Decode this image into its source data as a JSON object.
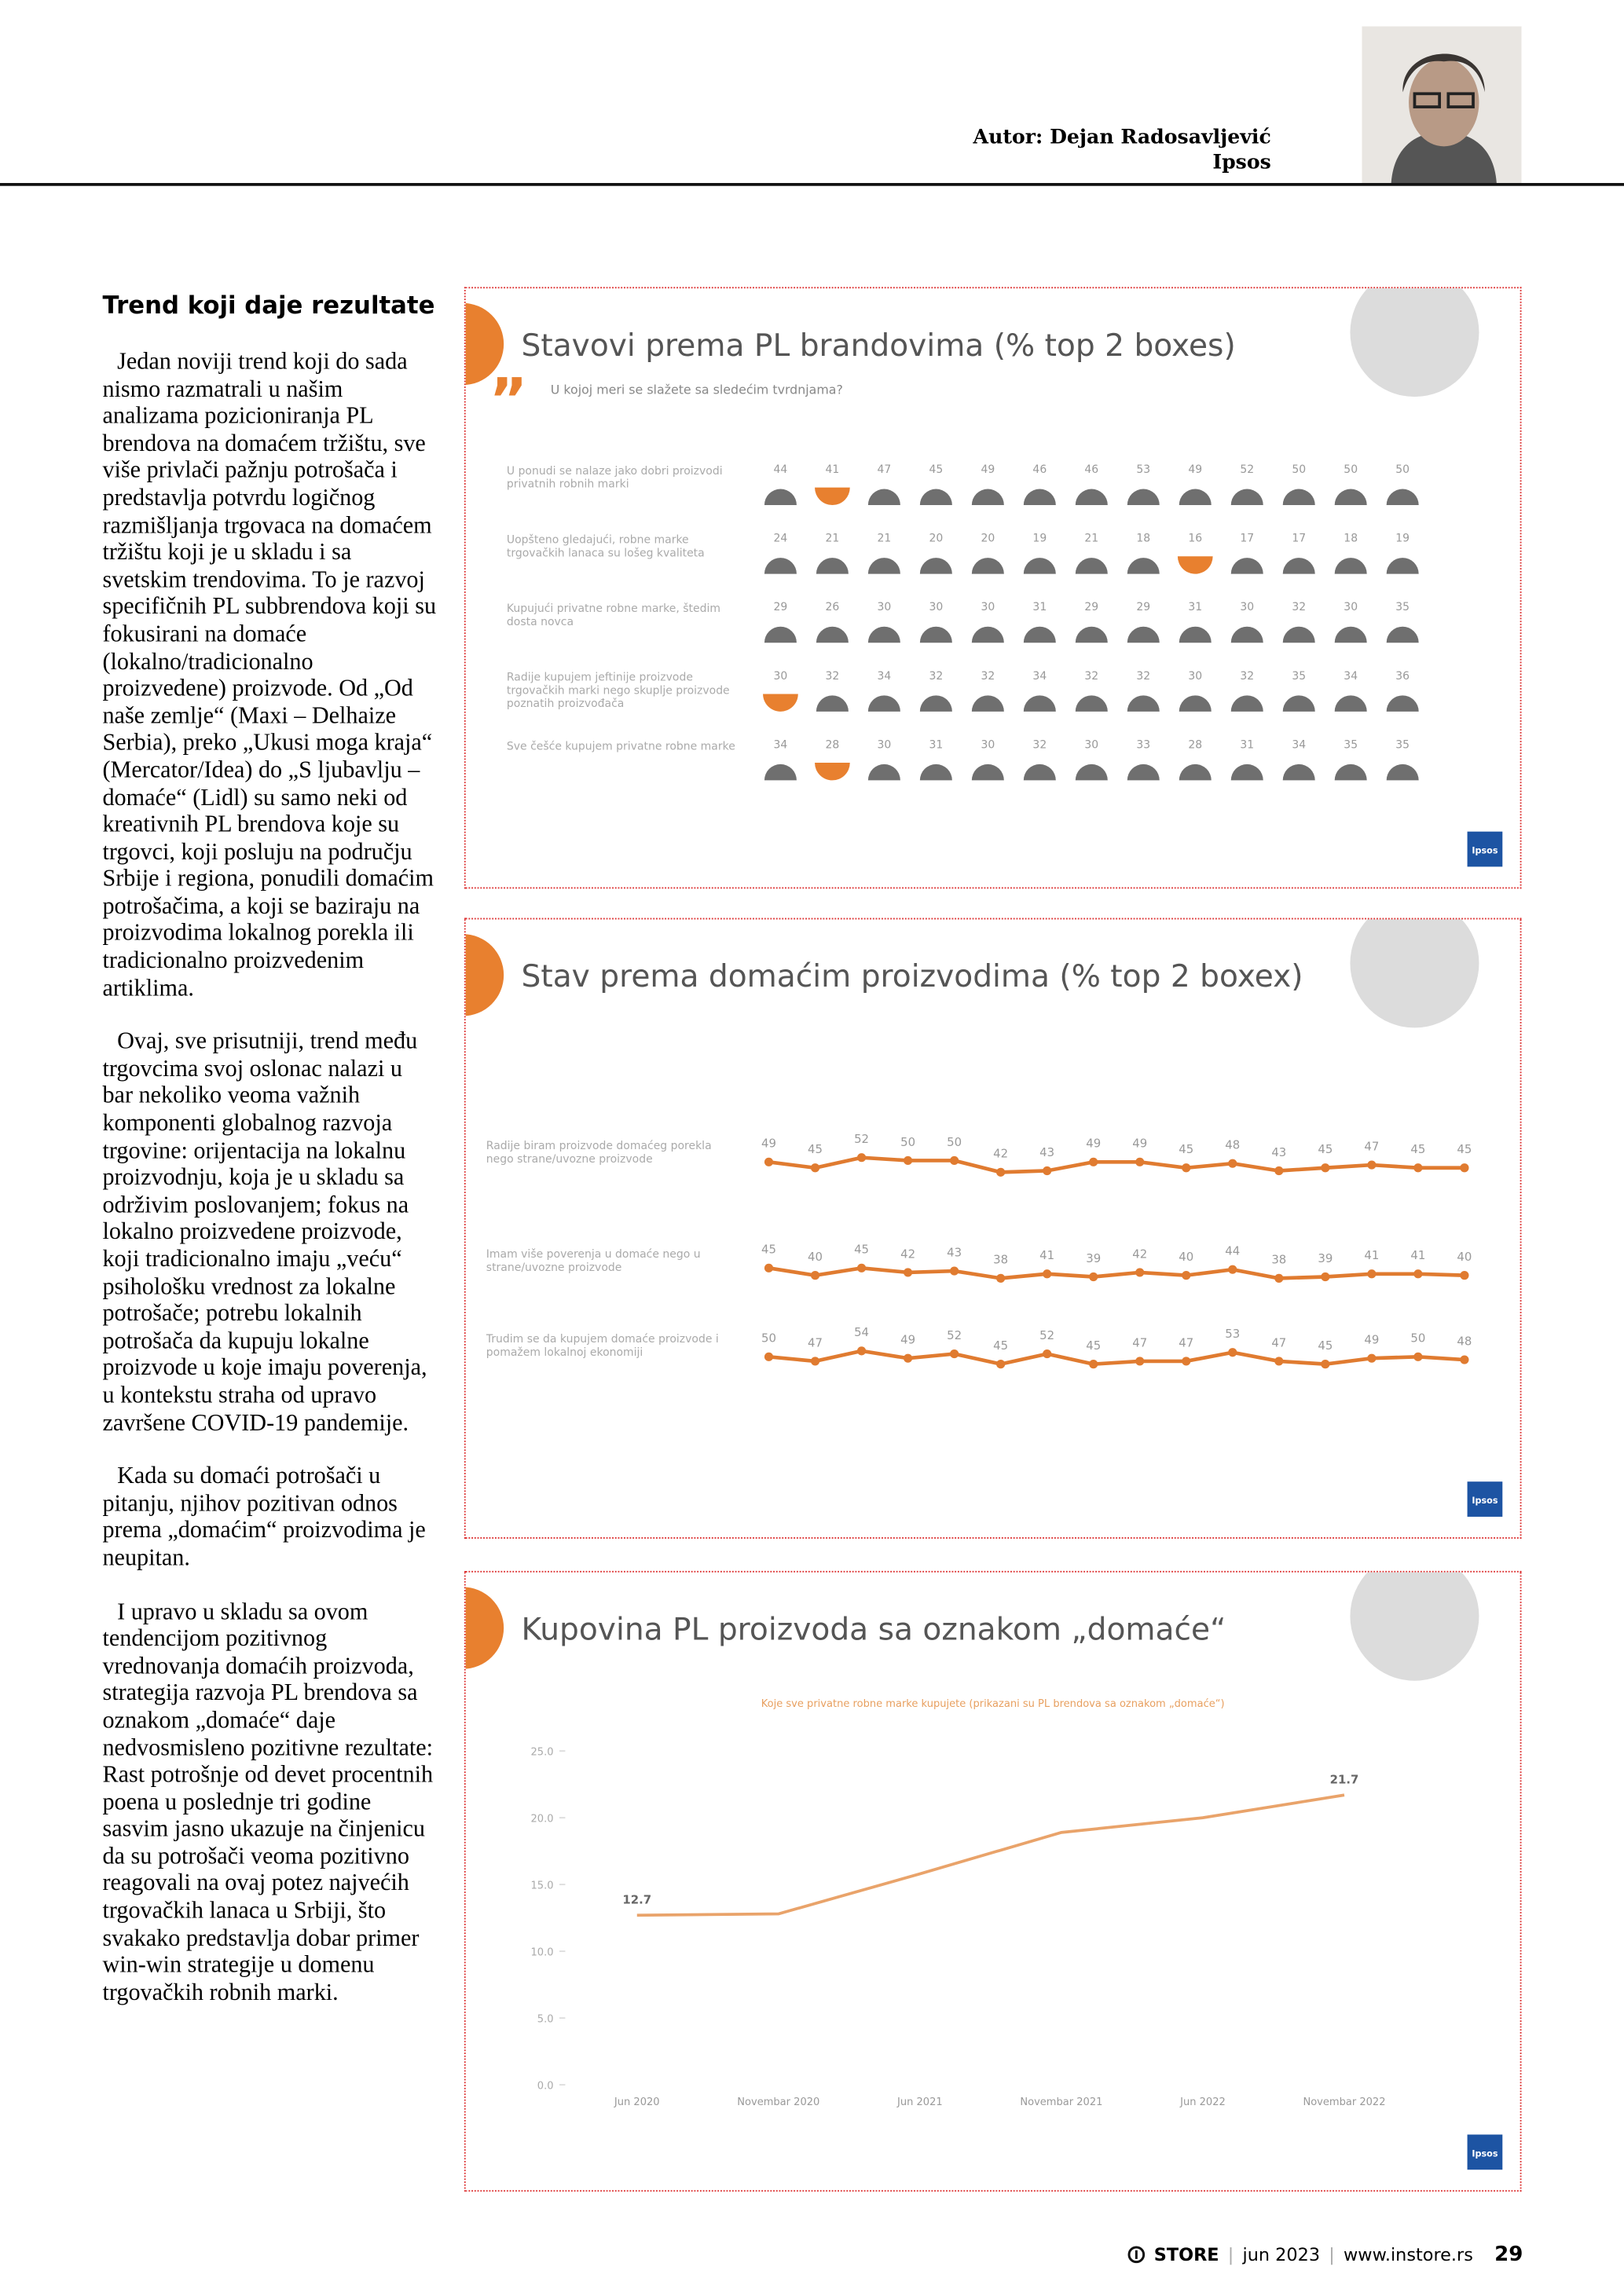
{
  "header": {
    "author": "Autor: Dejan Radosavljević",
    "company": "Ipsos"
  },
  "article": {
    "heading": "Trend koji daje rezultate",
    "paragraphs": [
      "Jedan noviji trend koji do sada nismo razmatrali u našim analizama pozicioniranja PL brendova na domaćem tržištu, sve više privlači pažnju potrošača i predstavlja potvrdu logičnog razmišljanja trgovaca na domaćem tržištu koji je u skladu i sa svetskim trendovima. To je razvoj specifičnih PL subbrendova koji su fokusirani na domaće (lokalno/tradicionalno proizvedene) proizvode. Od „Od naše zemlje“ (Maxi – Delhaize Serbia), preko „Ukusi moga kraja“ (Mercator/Idea) do „S ljubavlju – domaće“ (Lidl) su samo neki od kreativnih PL brendova koje su trgovci, koji posluju na području Srbije i regiona, ponudili domaćim potrošačima, a koji se baziraju na proizvodima lokalnog porekla ili tradicionalno proizvedenim artiklima.",
      "Ovaj, sve prisutniji, trend među trgovcima svoj oslonac nalazi u bar nekoliko veoma važnih komponenti globalnog razvoja trgovine: orijentacija na lokalnu proizvodnju, koja je u skladu sa održivim poslovanjem; fokus na lokalno proizvedene proizvode, koji tradicionalno imaju „veću“ psihološku vrednost za lokalne potrošače; potrebu lokalnih potrošača da kupuju lokalne proizvode u koje imaju poverenja, u kontekstu straha od upravo završene COVID-19 pandemije.",
      "Kada su domaći potrošači u pitanju, njihov pozitivan odnos prema „domaćim“ proizvodima je neupitan.",
      "I upravo u skladu sa ovom tendencijom pozitivnog vrednovanja domaćih proizvoda, strategija razvoja PL brendova sa oznakom „domaće“ daje nedvosmisleno pozitivne rezultate: Rast potrošnje od devet procentnih poena u poslednje tri godine sasvim jasno ukazuje na činjenicu da su potrošači veoma pozitivno reagovali na ovaj potez najvećih trgovačkih lanaca u Srbiji, što svakako predstavlja dobar primer win-win strategije u domenu trgovačkih robnih marki."
    ]
  },
  "chart_data": [
    {
      "type": "icon-grid",
      "title": "Stavovi prema PL brandovima (% top 2 boxes)",
      "subtitle": "U kojoj meri se slažete sa sledećim tvrdnjama?",
      "color": "#6f6f6f",
      "highlight_color": "#e8802f",
      "logo": "Ipsos",
      "series": [
        {
          "name": "U ponudi se nalaze jako dobri proizvodi privatnih robnih marki",
          "values": [
            44,
            41,
            47,
            45,
            49,
            46,
            46,
            53,
            49,
            52,
            50,
            50,
            50
          ],
          "highlight": [
            1
          ]
        },
        {
          "name": "Uopšteno gledajući, robne marke trgovačkih lanaca su lošeg kvaliteta",
          "values": [
            24,
            21,
            21,
            20,
            20,
            19,
            21,
            18,
            16,
            17,
            17,
            18,
            19
          ],
          "highlight": [
            8
          ]
        },
        {
          "name": "Kupujući privatne robne marke, štedim dosta novca",
          "values": [
            29,
            26,
            30,
            30,
            30,
            31,
            29,
            29,
            31,
            30,
            32,
            30,
            35
          ],
          "highlight": []
        },
        {
          "name": "Radije kupujem jeftinije proizvode trgovačkih marki nego skuplje proizvode poznatih proizvođača",
          "values": [
            30,
            32,
            34,
            32,
            32,
            34,
            32,
            32,
            30,
            32,
            35,
            34,
            36
          ],
          "highlight": [
            0
          ]
        },
        {
          "name": "Sve češće kupujem privatne robne marke",
          "values": [
            34,
            28,
            30,
            31,
            30,
            32,
            30,
            33,
            28,
            31,
            34,
            35,
            35
          ],
          "highlight": [
            1
          ]
        }
      ]
    },
    {
      "type": "line-rows",
      "title": "Stav prema domaćim proizvodima (% top 2 boxex)",
      "color": "#e07b30",
      "logo": "Ipsos",
      "series": [
        {
          "name": "Radije biram proizvode domaćeg porekla nego strane/uvozne proizvode",
          "values": [
            49,
            45,
            52,
            50,
            50,
            42,
            43,
            49,
            49,
            45,
            48,
            43,
            45,
            47,
            45,
            45
          ]
        },
        {
          "name": "Imam više poverenja u domaće nego u strane/uvozne proizvode",
          "values": [
            45,
            40,
            45,
            42,
            43,
            38,
            41,
            39,
            42,
            40,
            44,
            38,
            39,
            41,
            41,
            40
          ]
        },
        {
          "name": "Trudim se da kupujem domaće proizvode i pomažem lokalnoj ekonomiji",
          "values": [
            50,
            47,
            54,
            49,
            52,
            45,
            52,
            45,
            47,
            47,
            53,
            47,
            45,
            49,
            50,
            48
          ]
        }
      ]
    },
    {
      "type": "line",
      "title": "Kupovina PL proizvoda sa oznakom „domaće“",
      "subtitle": "Koje sve privatne robne marke kupujete (prikazani su PL brendova sa oznakom „domaće“)",
      "color": "#e9a36a",
      "logo": "Ipsos",
      "categories": [
        "Jun 2020",
        "Novembar 2020",
        "Jun 2021",
        "Novembar 2021",
        "Jun 2022",
        "Novembar 2022"
      ],
      "values": [
        12.7,
        12.8,
        15.8,
        18.9,
        20.0,
        21.7
      ],
      "labeled": [
        0,
        5
      ],
      "ylim": [
        0,
        25
      ],
      "yticks": [
        {
          "value": 0,
          "label": "0.0"
        },
        {
          "value": 5,
          "label": "5.0"
        },
        {
          "value": 10,
          "label": "10.0"
        },
        {
          "value": 15,
          "label": "15.0"
        },
        {
          "value": 20,
          "label": "20.0"
        },
        {
          "value": 25,
          "label": "25.0"
        }
      ]
    }
  ],
  "footer": {
    "magazine": "STORE",
    "issue": "jun 2023",
    "website": "www.instore.rs",
    "page": "29"
  }
}
